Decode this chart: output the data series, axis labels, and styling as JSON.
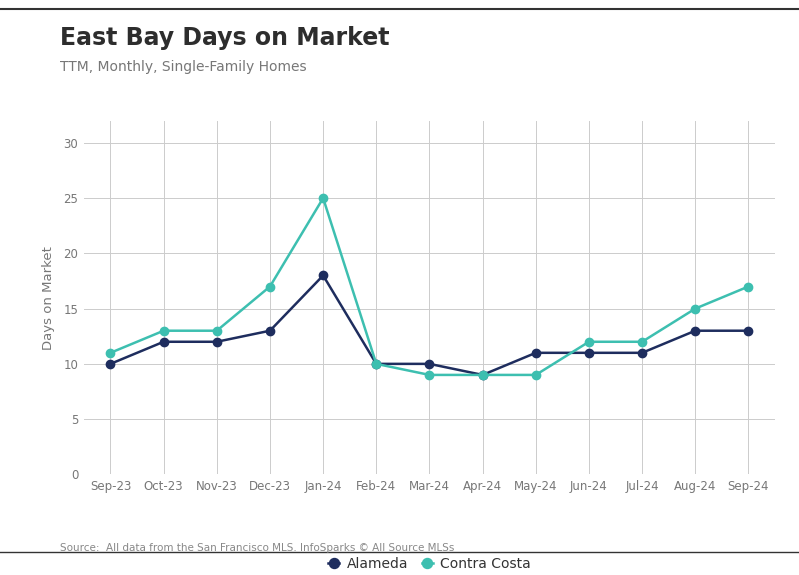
{
  "title": "East Bay Days on Market",
  "subtitle": "TTM, Monthly, Single-Family Homes",
  "ylabel": "Days on Market",
  "source": "Source:  All data from the San Francisco MLS. InfoSparks © All Source MLSs",
  "categories": [
    "Sep-23",
    "Oct-23",
    "Nov-23",
    "Dec-23",
    "Jan-24",
    "Feb-24",
    "Mar-24",
    "Apr-24",
    "May-24",
    "Jun-24",
    "Jul-24",
    "Aug-24",
    "Sep-24"
  ],
  "alameda": [
    10,
    12,
    12,
    13,
    18,
    10,
    10,
    9,
    11,
    11,
    11,
    13,
    13
  ],
  "contra_costa": [
    11,
    13,
    13,
    17,
    25,
    10,
    9,
    9,
    9,
    12,
    12,
    15,
    17
  ],
  "alameda_color": "#1e2d5e",
  "contra_costa_color": "#3dbfb0",
  "background_color": "#ffffff",
  "ylim": [
    0,
    32
  ],
  "yticks": [
    0,
    5,
    10,
    15,
    20,
    25,
    30
  ],
  "grid_color": "#cccccc",
  "title_fontsize": 17,
  "subtitle_fontsize": 10,
  "legend_labels": [
    "Alameda",
    "Contra Costa"
  ],
  "marker_size": 6,
  "linewidth": 1.8,
  "border_color": "#333333"
}
